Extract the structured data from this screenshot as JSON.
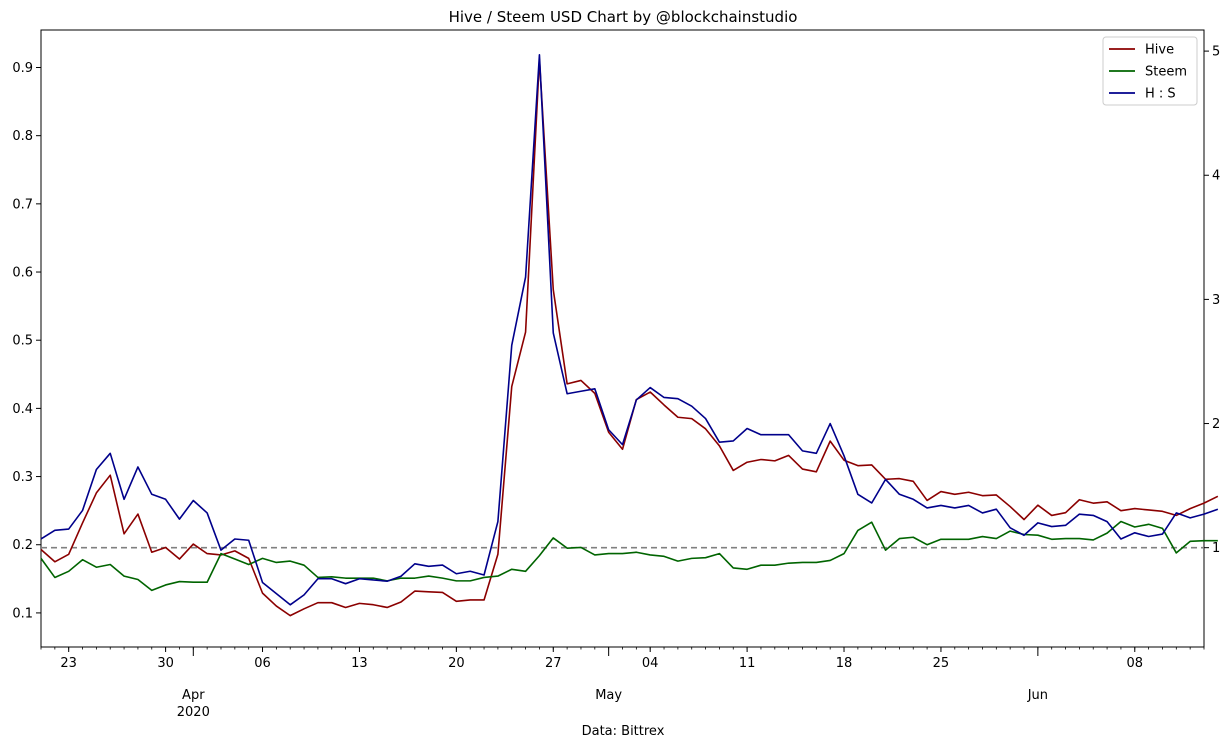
{
  "chart_data": {
    "type": "line",
    "title": "Hive / Steem USD Chart by @blockchainstudio",
    "xlabel": "Data: Bittrex",
    "x_start": "2020-03-21",
    "x_end": "2020-06-13",
    "x_major_ticks": [
      {
        "date": "2020-04-01",
        "label": "Apr",
        "sublabel": "2020"
      },
      {
        "date": "2020-05-01",
        "label": "May",
        "sublabel": ""
      },
      {
        "date": "2020-06-01",
        "label": "Jun",
        "sublabel": ""
      }
    ],
    "x_minor_ticks": [
      {
        "date": "2020-03-23",
        "label": "23"
      },
      {
        "date": "2020-03-30",
        "label": "30"
      },
      {
        "date": "2020-04-06",
        "label": "06"
      },
      {
        "date": "2020-04-13",
        "label": "13"
      },
      {
        "date": "2020-04-20",
        "label": "20"
      },
      {
        "date": "2020-04-27",
        "label": "27"
      },
      {
        "date": "2020-05-04",
        "label": "04"
      },
      {
        "date": "2020-05-11",
        "label": "11"
      },
      {
        "date": "2020-05-18",
        "label": "18"
      },
      {
        "date": "2020-05-25",
        "label": "25"
      },
      {
        "date": "2020-06-08",
        "label": "08"
      }
    ],
    "y_left": {
      "min": 0.05,
      "max": 0.955,
      "ticks": [
        "0.1",
        "0.2",
        "0.3",
        "0.4",
        "0.5",
        "0.6",
        "0.7",
        "0.8",
        "0.9"
      ]
    },
    "y_right": {
      "min": 0.2,
      "max": 5.17,
      "ticks": [
        "1",
        "2",
        "3",
        "4",
        "5"
      ]
    },
    "reference_line": {
      "axis": "right",
      "value": 1.0,
      "style": "dashed",
      "color": "#808080"
    },
    "legend_position": "top-right",
    "series": [
      {
        "name": "Hive",
        "axis": "left",
        "color": "#8b0000",
        "values": [
          0.193,
          0.175,
          0.186,
          0.232,
          0.276,
          0.302,
          0.216,
          0.245,
          0.189,
          0.196,
          0.179,
          0.201,
          0.187,
          0.185,
          0.191,
          0.18,
          0.129,
          0.11,
          0.096,
          0.106,
          0.115,
          0.115,
          0.108,
          0.114,
          0.112,
          0.108,
          0.116,
          0.132,
          0.131,
          0.13,
          0.117,
          0.119,
          0.119,
          0.186,
          0.432,
          0.512,
          0.912,
          0.574,
          0.436,
          0.441,
          0.422,
          0.365,
          0.34,
          0.413,
          0.424,
          0.405,
          0.387,
          0.385,
          0.37,
          0.345,
          0.309,
          0.321,
          0.325,
          0.323,
          0.331,
          0.311,
          0.307,
          0.352,
          0.324,
          0.316,
          0.317,
          0.296,
          0.297,
          0.293,
          0.265,
          0.278,
          0.274,
          0.277,
          0.272,
          0.273,
          0.256,
          0.237,
          0.258,
          0.243,
          0.247,
          0.266,
          0.261,
          0.263,
          0.25,
          0.253,
          0.251,
          0.249,
          0.243,
          0.253,
          0.261,
          0.271
        ]
      },
      {
        "name": "Steem",
        "axis": "left",
        "color": "#006400",
        "values": [
          0.18,
          0.152,
          0.161,
          0.178,
          0.167,
          0.171,
          0.154,
          0.149,
          0.133,
          0.141,
          0.146,
          0.145,
          0.145,
          0.187,
          0.179,
          0.171,
          0.18,
          0.174,
          0.176,
          0.17,
          0.152,
          0.153,
          0.151,
          0.151,
          0.151,
          0.147,
          0.151,
          0.151,
          0.154,
          0.151,
          0.147,
          0.147,
          0.152,
          0.154,
          0.164,
          0.161,
          0.184,
          0.21,
          0.195,
          0.196,
          0.185,
          0.187,
          0.187,
          0.189,
          0.185,
          0.183,
          0.176,
          0.18,
          0.181,
          0.187,
          0.166,
          0.164,
          0.17,
          0.17,
          0.173,
          0.174,
          0.174,
          0.177,
          0.187,
          0.221,
          0.233,
          0.192,
          0.209,
          0.211,
          0.2,
          0.208,
          0.208,
          0.208,
          0.212,
          0.209,
          0.22,
          0.215,
          0.214,
          0.208,
          0.209,
          0.209,
          0.207,
          0.217,
          0.234,
          0.226,
          0.23,
          0.224,
          0.188,
          0.205,
          0.206,
          0.206
        ]
      },
      {
        "name": "H : S",
        "axis": "right",
        "color": "#00008b",
        "values": [
          1.07,
          1.14,
          1.15,
          1.3,
          1.63,
          1.76,
          1.39,
          1.65,
          1.43,
          1.39,
          1.23,
          1.38,
          1.28,
          0.98,
          1.07,
          1.06,
          0.72,
          0.63,
          0.54,
          0.62,
          0.75,
          0.75,
          0.71,
          0.75,
          0.74,
          0.73,
          0.77,
          0.87,
          0.85,
          0.86,
          0.79,
          0.81,
          0.78,
          1.21,
          2.63,
          3.18,
          4.97,
          2.73,
          2.24,
          2.26,
          2.28,
          1.95,
          1.83,
          2.19,
          2.29,
          2.21,
          2.2,
          2.14,
          2.04,
          1.85,
          1.86,
          1.96,
          1.91,
          1.91,
          1.91,
          1.78,
          1.76,
          2.0,
          1.74,
          1.43,
          1.36,
          1.55,
          1.43,
          1.39,
          1.32,
          1.34,
          1.32,
          1.34,
          1.28,
          1.31,
          1.16,
          1.1,
          1.2,
          1.17,
          1.18,
          1.27,
          1.26,
          1.21,
          1.07,
          1.12,
          1.09,
          1.11,
          1.28,
          1.24,
          1.27,
          1.31
        ]
      }
    ]
  }
}
